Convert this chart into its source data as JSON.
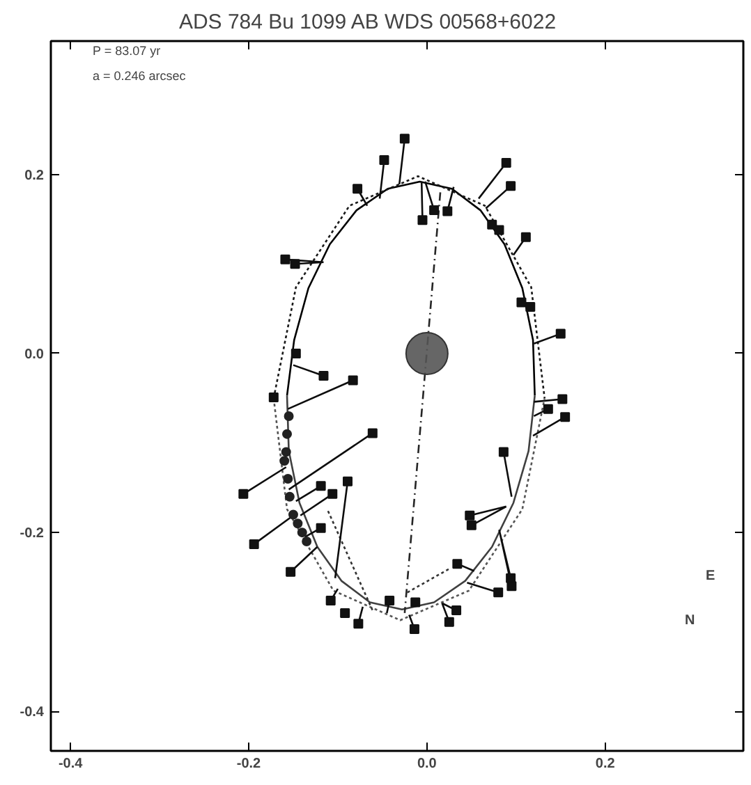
{
  "chart_data": {
    "type": "scatter",
    "title": "ADS 784      Bu 1099 AB      WDS 00568+6022",
    "xlim": [
      -0.422,
      0.355
    ],
    "ylim": [
      -0.444,
      0.349
    ],
    "xticks": [
      -0.4,
      -0.2,
      {
        "value": 0,
        "label": "0.0"
      },
      0.2
    ],
    "yticks": [
      -0.4,
      -0.2,
      {
        "value": 0,
        "label": "0.0"
      },
      0.2
    ],
    "grid": false,
    "annotations": [
      "P = 83.07 yr",
      "a = 0.246 arcsec",
      "E",
      "N"
    ],
    "series": [
      {
        "type": "line",
        "color": "#000000",
        "line_style": "solid",
        "x": [
          -0.157,
          -0.149,
          -0.133,
          -0.109,
          -0.079,
          -0.044,
          -0.008,
          0.028,
          0.06,
          0.087,
          0.107,
          0.119,
          0.121
        ],
        "values": [
          -0.047,
          0.015,
          0.073,
          0.122,
          0.16,
          0.184,
          0.192,
          0.184,
          0.16,
          0.122,
          0.073,
          0.015,
          -0.047
        ]
      },
      {
        "type": "line",
        "color": "#404040",
        "line_style": "solid",
        "x": [
          -0.157,
          -0.155,
          -0.143,
          -0.123,
          -0.096,
          -0.064,
          -0.028,
          0.008,
          0.043,
          0.073,
          0.097,
          0.114,
          0.121
        ],
        "values": [
          -0.047,
          -0.109,
          -0.167,
          -0.216,
          -0.254,
          -0.278,
          -0.286,
          -0.278,
          -0.254,
          -0.216,
          -0.167,
          -0.109,
          -0.047
        ]
      },
      {
        "type": "line",
        "color": "#1a1a1a",
        "line_style": "dotted",
        "x": [
          -0.172,
          -0.147,
          -0.087,
          -0.01,
          0.065,
          0.117,
          0.132
        ],
        "values": [
          -0.05,
          0.074,
          0.165,
          0.198,
          0.165,
          0.074,
          -0.05
        ]
      },
      {
        "type": "line",
        "color": "#555555",
        "line_style": "dotted",
        "x": [
          -0.172,
          -0.157,
          -0.105,
          -0.03,
          0.047,
          0.107,
          0.132
        ],
        "values": [
          -0.05,
          -0.174,
          -0.265,
          -0.298,
          -0.265,
          -0.174,
          -0.05
        ]
      },
      {
        "type": "line",
        "color": "#262626",
        "line_style": "dashed",
        "x": [
          0.015,
          -0.025
        ],
        "values": [
          0.18,
          -0.29
        ]
      },
      {
        "type": "line",
        "color": "#333333",
        "line_style": "dotted",
        "x": [
          -0.111,
          -0.061,
          null,
          -0.022,
          0.026
        ],
        "values": [
          -0.176,
          -0.287,
          null,
          -0.267,
          -0.24
        ]
      },
      {
        "type": "line",
        "color": "#0d0d0d",
        "line_style": "solid",
        "x": [
          -0.025,
          -0.031,
          null,
          -0.048,
          -0.053,
          null,
          -0.078,
          -0.067,
          null,
          -0.005,
          -0.006,
          null,
          0.008,
          -0.002,
          null,
          0.023,
          0.03,
          null,
          0.089,
          0.058,
          null,
          0.094,
          0.066,
          null,
          0.111,
          0.097,
          null,
          0.15,
          0.12,
          null,
          -0.159,
          -0.116,
          null,
          -0.148,
          -0.116,
          null,
          -0.116,
          -0.15,
          null,
          -0.083,
          -0.156,
          null,
          -0.061,
          -0.155,
          null,
          -0.206,
          -0.158,
          null,
          -0.194,
          -0.15,
          null,
          -0.089,
          -0.103,
          null,
          -0.119,
          -0.147,
          null,
          -0.106,
          -0.142,
          null,
          -0.119,
          -0.137,
          null,
          -0.153,
          -0.123,
          null,
          -0.108,
          -0.1,
          null,
          -0.077,
          -0.072,
          null,
          -0.042,
          -0.045,
          null,
          -0.014,
          -0.02,
          null,
          0.033,
          0.017,
          null,
          0.025,
          0.017,
          null,
          0.152,
          0.12,
          null,
          0.136,
          0.12,
          null,
          0.155,
          0.119,
          null,
          0.086,
          0.095,
          null,
          0.048,
          0.089,
          null,
          0.05,
          0.089,
          null,
          0.094,
          0.081,
          null,
          0.095,
          0.081,
          null,
          0.08,
          0.045,
          null,
          0.034,
          0.053
        ],
        "values": [
          0.24,
          0.189,
          null,
          0.216,
          0.173,
          null,
          0.184,
          0.165,
          null,
          0.149,
          0.192,
          null,
          0.16,
          0.192,
          null,
          0.159,
          0.186,
          null,
          0.213,
          0.173,
          null,
          0.187,
          0.162,
          null,
          0.13,
          0.11,
          null,
          0.022,
          0.011,
          null,
          0.105,
          0.102,
          null,
          0.1,
          0.102,
          null,
          -0.025,
          -0.013,
          null,
          -0.03,
          -0.062,
          null,
          -0.089,
          -0.152,
          null,
          -0.157,
          -0.127,
          null,
          -0.213,
          -0.181,
          null,
          -0.143,
          -0.251,
          null,
          -0.148,
          -0.165,
          null,
          -0.157,
          -0.181,
          null,
          -0.195,
          -0.205,
          null,
          -0.244,
          -0.216,
          null,
          -0.276,
          -0.263,
          null,
          -0.302,
          -0.283,
          null,
          -0.276,
          -0.29,
          null,
          -0.308,
          -0.292,
          null,
          -0.287,
          -0.279,
          null,
          -0.3,
          -0.279,
          null,
          -0.051,
          -0.054,
          null,
          -0.062,
          -0.07,
          null,
          -0.071,
          -0.092,
          null,
          -0.11,
          -0.16,
          null,
          -0.181,
          -0.171,
          null,
          -0.192,
          -0.171,
          null,
          -0.251,
          -0.197,
          null,
          -0.26,
          -0.197,
          null,
          -0.267,
          -0.256,
          null,
          -0.235,
          -0.243
        ]
      },
      {
        "marker": "square",
        "color": "#111111",
        "x": [
          -0.025,
          -0.048,
          -0.078,
          -0.005,
          0.008,
          0.023,
          0.089,
          0.094,
          0.111,
          0.15,
          -0.159,
          -0.148,
          -0.116,
          -0.083,
          -0.061,
          -0.206,
          -0.194,
          -0.089,
          -0.119,
          -0.106,
          -0.119,
          -0.153,
          -0.108,
          -0.077,
          -0.042,
          -0.014,
          0.033,
          0.025,
          0.152,
          0.136,
          0.155,
          0.086,
          0.048,
          0.05,
          0.094,
          0.095,
          0.08,
          0.034,
          0.073,
          0.081,
          0.106,
          0.116,
          -0.147,
          -0.172,
          -0.092,
          -0.013
        ],
        "values": [
          0.24,
          0.216,
          0.184,
          0.149,
          0.16,
          0.159,
          0.213,
          0.187,
          0.13,
          0.022,
          0.105,
          0.1,
          -0.025,
          -0.03,
          -0.089,
          -0.157,
          -0.213,
          -0.143,
          -0.148,
          -0.157,
          -0.195,
          -0.244,
          -0.276,
          -0.302,
          -0.276,
          -0.308,
          -0.287,
          -0.3,
          -0.051,
          -0.062,
          -0.071,
          -0.11,
          -0.181,
          -0.192,
          -0.251,
          -0.26,
          -0.267,
          -0.235,
          0.144,
          0.138,
          0.057,
          0.052,
          0.0,
          -0.049,
          -0.29,
          -0.278
        ]
      },
      {
        "type": "scatter",
        "marker": "circle",
        "color": "#222222",
        "x": [
          -0.155,
          -0.157,
          -0.158,
          -0.16,
          -0.156,
          -0.154,
          -0.15,
          -0.145,
          -0.14,
          -0.135
        ],
        "values": [
          -0.07,
          -0.09,
          -0.11,
          -0.12,
          -0.14,
          -0.16,
          -0.18,
          -0.19,
          -0.2,
          -0.21
        ]
      },
      {
        "type": "bubble",
        "color": "#555555",
        "x": [
          0
        ],
        "values": [
          0
        ],
        "sizes": [
          1
        ]
      }
    ]
  }
}
